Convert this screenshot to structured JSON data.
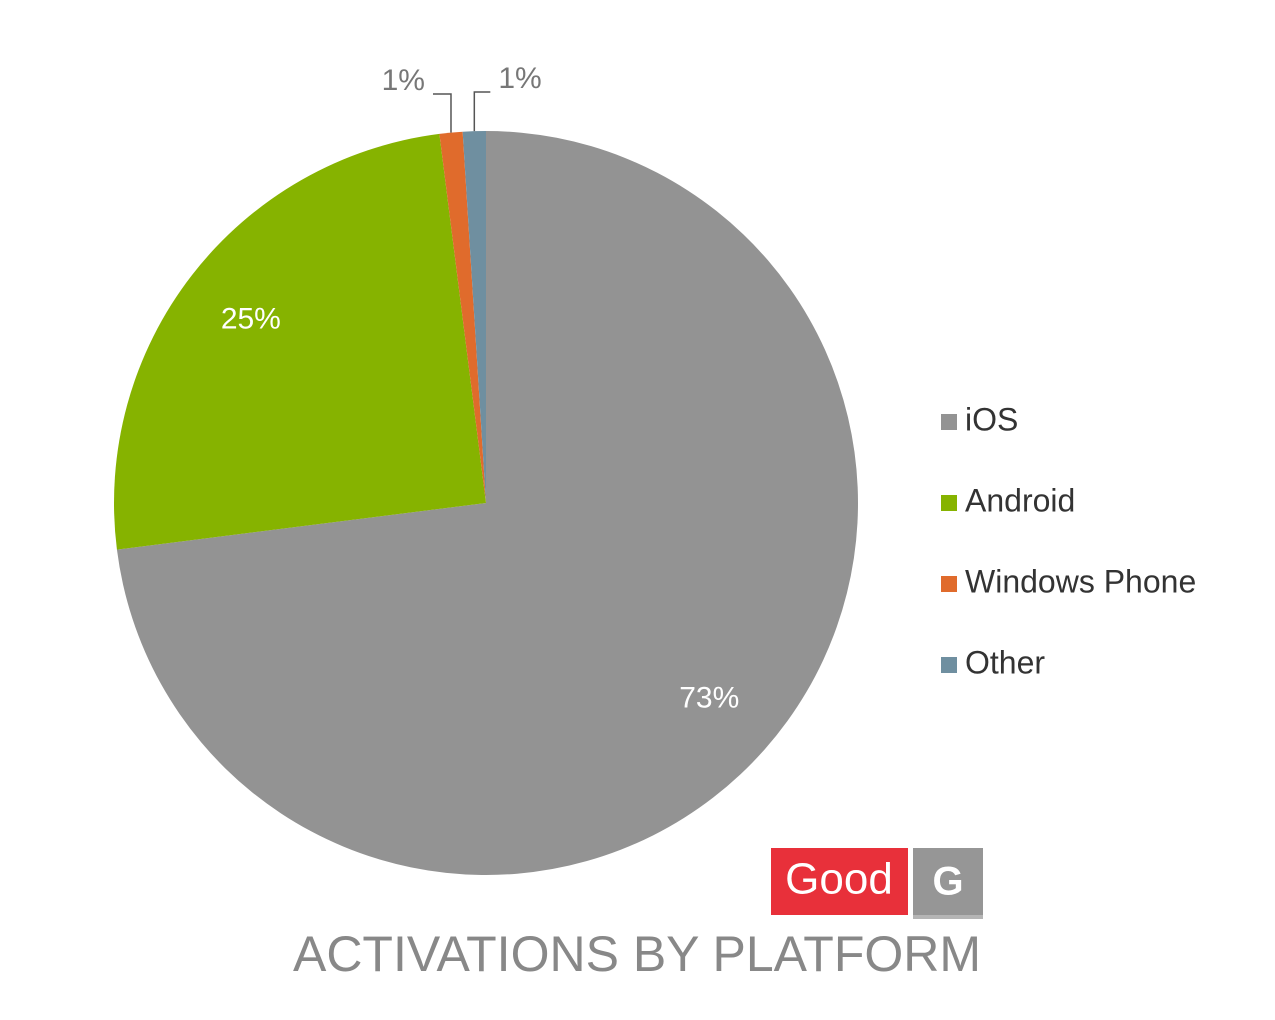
{
  "chart_data": {
    "type": "pie",
    "title": "ACTIVATIONS BY PLATFORM",
    "categories": [
      "iOS",
      "Android",
      "Windows Phone",
      "Other"
    ],
    "values": [
      73,
      25,
      1,
      1
    ],
    "value_labels": [
      "73%",
      "25%",
      "1%",
      "1%"
    ],
    "colors": [
      "#939393",
      "#86b300",
      "#e06b2c",
      "#6f8fa0"
    ],
    "legend": "right",
    "logo": [
      "Good",
      "G"
    ]
  }
}
